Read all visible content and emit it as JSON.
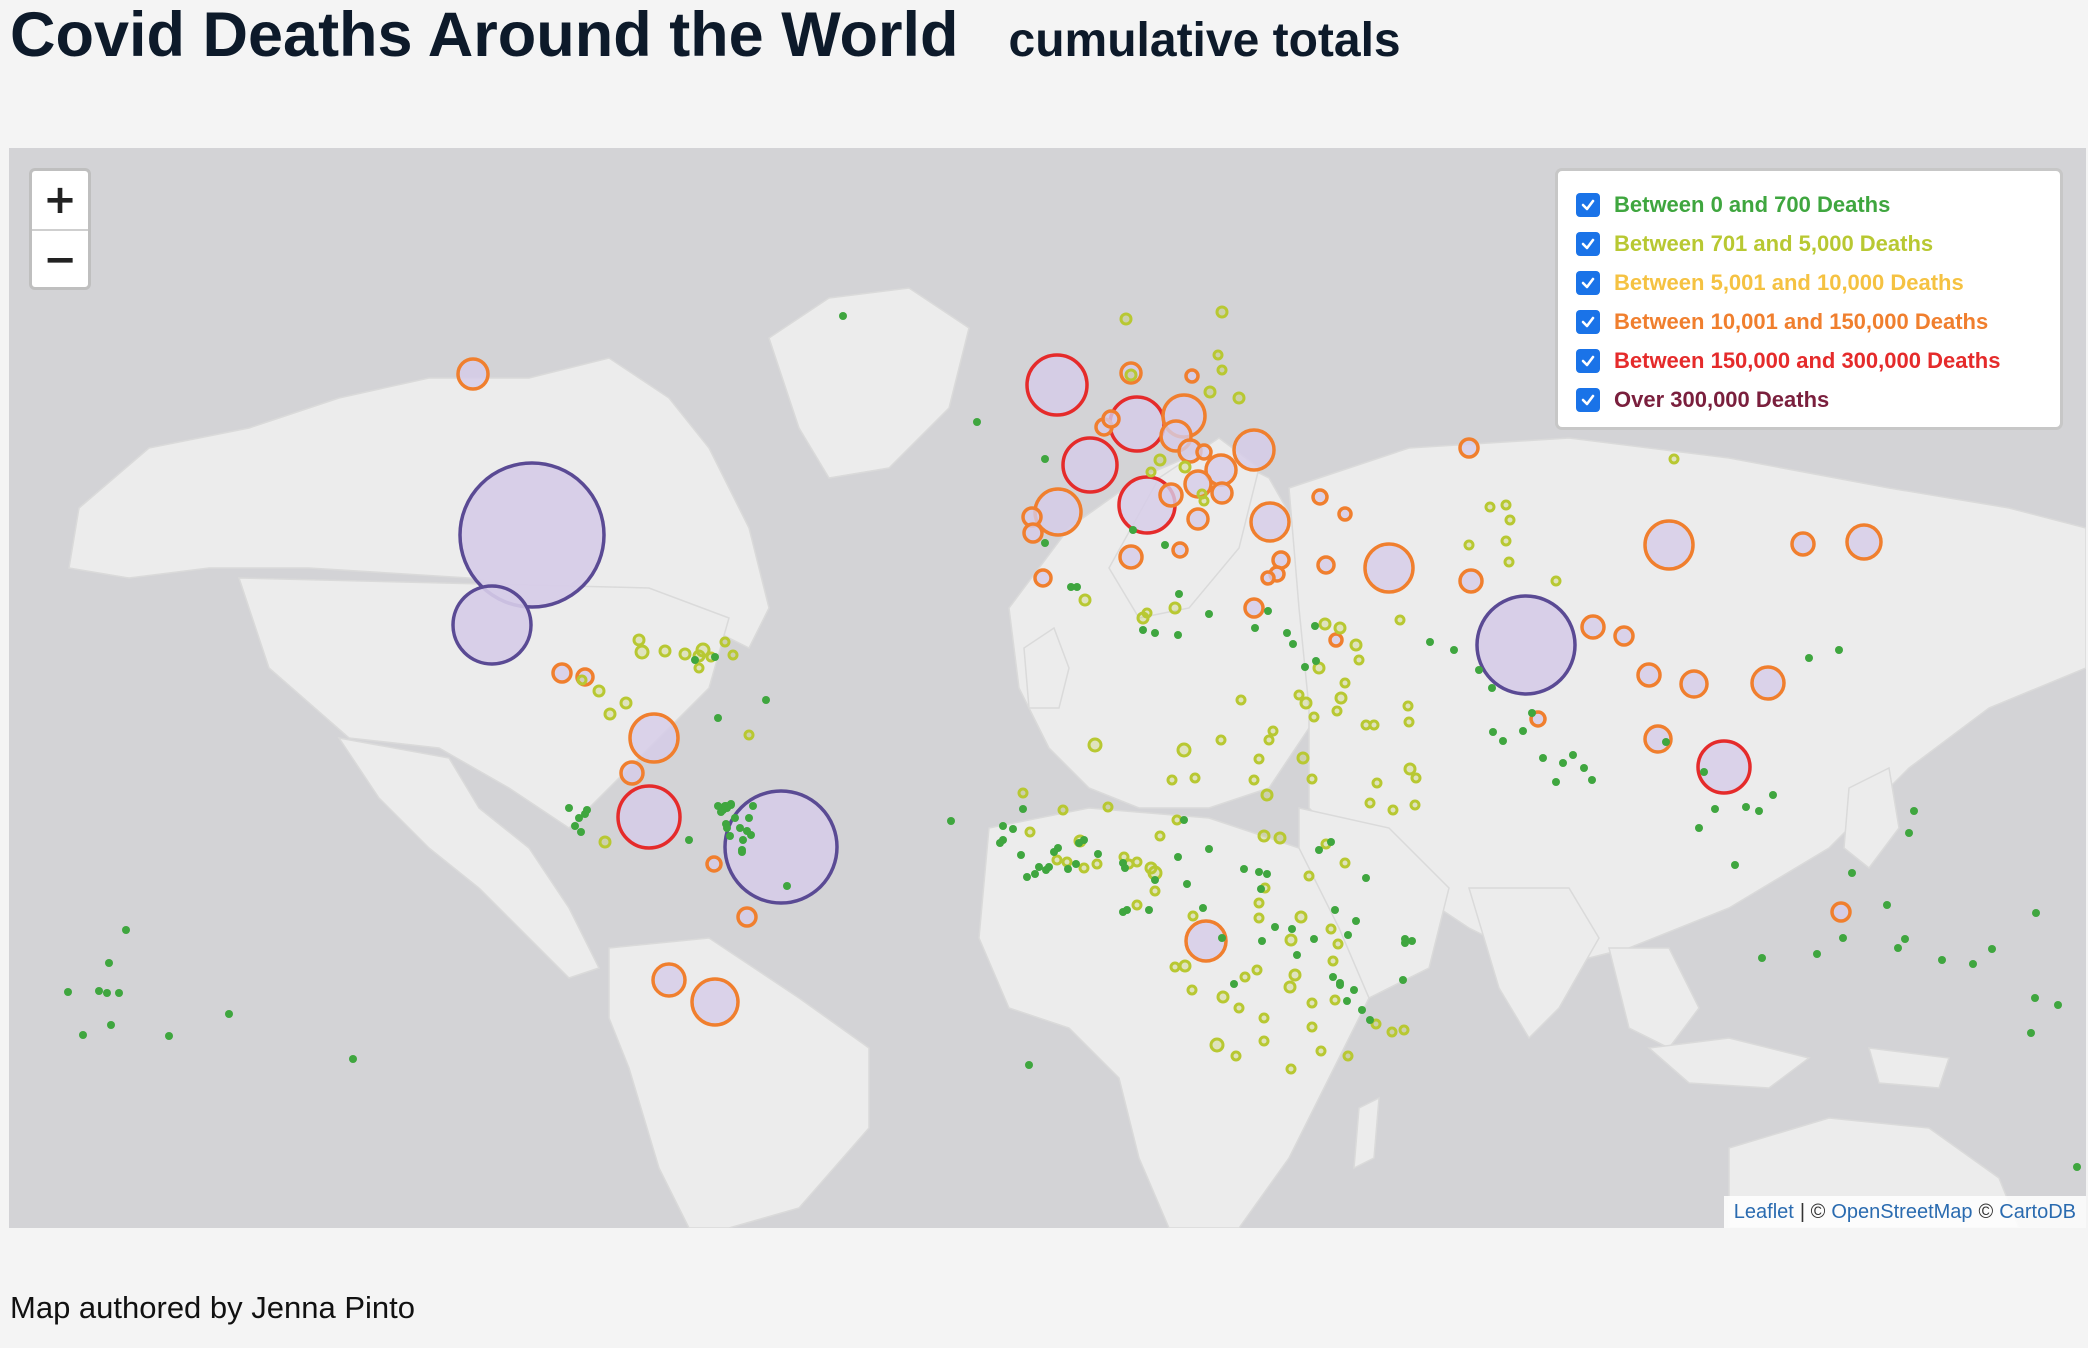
{
  "header": {
    "title": "Covid Deaths Around the World",
    "subtitle": "cumulative totals"
  },
  "zoom": {
    "in_label": "+",
    "out_label": "−"
  },
  "legend": {
    "items": [
      {
        "label": "Between 0 and 700 Deaths",
        "color": "#3fa63f",
        "checked": true
      },
      {
        "label": "Between 701 and 5,000 Deaths",
        "color": "#b8c832",
        "checked": true
      },
      {
        "label": "Between 5,001 and 10,000 Deaths",
        "color": "#f5c242",
        "checked": true
      },
      {
        "label": "Between 10,001 and 150,000 Deaths",
        "color": "#f07f2e",
        "checked": true
      },
      {
        "label": "Between 150,000 and 300,000 Deaths",
        "color": "#e52b2b",
        "checked": true
      },
      {
        "label": "Over 300,000 Deaths",
        "color": "#7a1f3d",
        "checked": true
      }
    ]
  },
  "attribution": {
    "leaflet": "Leaflet",
    "separator": "| ©",
    "osm": "OpenStreetMap",
    "copy": "©",
    "carto": "CartoDB"
  },
  "footer": {
    "credit": "Map authored by Jenna Pinto"
  },
  "colors": {
    "ocean": "#d3d3d6",
    "land": "#ececec",
    "over300k_stroke": "#5a4a94",
    "over300k_fill": "#d6cce8"
  }
}
